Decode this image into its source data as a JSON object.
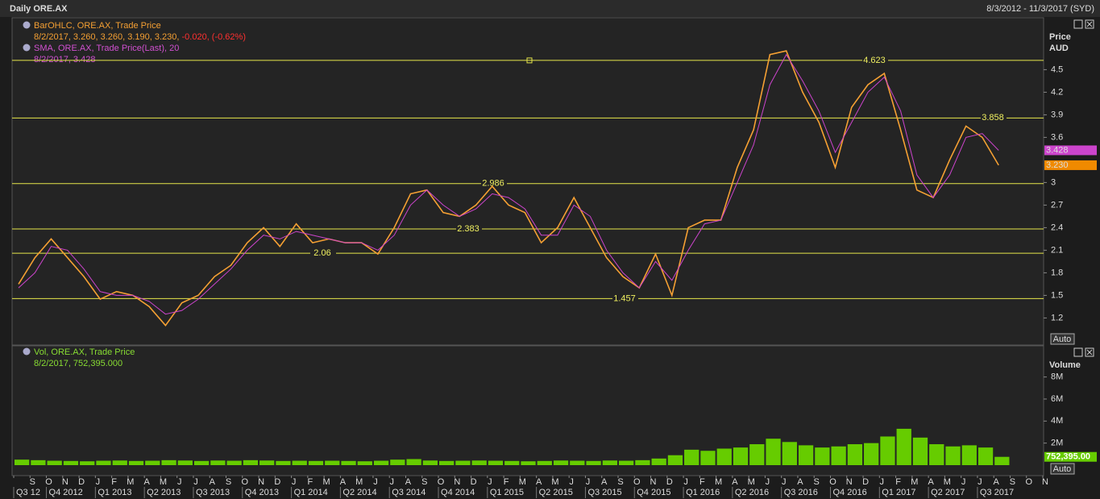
{
  "header": {
    "title": "Daily ORE.AX",
    "range": "8/3/2012 - 11/3/2017 (SYD)"
  },
  "chart_data": [
    {
      "type": "line",
      "axis_title": "Price",
      "axis_unit": "AUD",
      "scale_button": "Auto",
      "ylim": [
        0.84,
        5.19
      ],
      "yticks": [
        1.2,
        1.5,
        1.8,
        2.1,
        2.4,
        2.7,
        3,
        3.6,
        3.9,
        4.2,
        4.5
      ],
      "levels": [
        4.623,
        3.858,
        2.986,
        2.383,
        2.06,
        1.457
      ],
      "level_color": "#e6e64a",
      "series": [
        {
          "name": "BarOHLC, ORE.AX, Trade Price",
          "color": "#f5a033",
          "legend_detail": "8/2/2017, 3.260, 3.260, 3.190, 3.230,",
          "legend_change": "-0.020, (-0.62%)",
          "last_value": {
            "value": 3.23,
            "label": "3.230"
          },
          "values": [
            1.65,
            2.0,
            2.25,
            2.0,
            1.75,
            1.45,
            1.55,
            1.5,
            1.35,
            1.1,
            1.4,
            1.5,
            1.75,
            1.9,
            2.2,
            2.4,
            2.15,
            2.45,
            2.2,
            2.25,
            2.2,
            2.2,
            2.05,
            2.4,
            2.85,
            2.9,
            2.6,
            2.55,
            2.7,
            2.95,
            2.7,
            2.6,
            2.2,
            2.4,
            2.8,
            2.4,
            2.0,
            1.75,
            1.6,
            2.05,
            1.5,
            2.4,
            2.5,
            2.5,
            3.2,
            3.7,
            4.7,
            4.75,
            4.2,
            3.8,
            3.2,
            4.0,
            4.3,
            4.45,
            3.7,
            2.9,
            2.8,
            3.3,
            3.75,
            3.6,
            3.23,
            null,
            null,
            null
          ]
        },
        {
          "name": "SMA, ORE.AX, Trade Price(Last),  20",
          "color": "#cc44cc",
          "legend_detail": "8/2/2017, 3.428",
          "last_value": 3.428,
          "values": [
            1.6,
            1.8,
            2.15,
            2.1,
            1.85,
            1.55,
            1.5,
            1.5,
            1.42,
            1.25,
            1.3,
            1.45,
            1.65,
            1.85,
            2.1,
            2.3,
            2.25,
            2.35,
            2.3,
            2.25,
            2.2,
            2.2,
            2.1,
            2.3,
            2.7,
            2.9,
            2.7,
            2.55,
            2.65,
            2.85,
            2.8,
            2.65,
            2.3,
            2.3,
            2.7,
            2.55,
            2.1,
            1.8,
            1.6,
            1.95,
            1.7,
            2.1,
            2.45,
            2.5,
            3.0,
            3.5,
            4.3,
            4.7,
            4.35,
            3.95,
            3.4,
            3.8,
            4.2,
            4.4,
            3.95,
            3.1,
            2.8,
            3.1,
            3.6,
            3.65,
            3.428,
            null,
            null,
            null
          ]
        }
      ]
    },
    {
      "type": "bar",
      "axis_title": "Volume",
      "scale_button": "Auto",
      "ylim": [
        0,
        10900000
      ],
      "yticks": [
        {
          "value": 2000000,
          "label": "2M"
        },
        {
          "value": 4000000,
          "label": "4M"
        },
        {
          "value": 6000000,
          "label": "6M"
        },
        {
          "value": 8000000,
          "label": "8M"
        }
      ],
      "categories": [
        null,
        "S",
        "O",
        "N",
        "D",
        "J",
        "F",
        "M",
        "A",
        "M",
        "J",
        "J",
        "A",
        "S",
        "O",
        "N",
        "D",
        "J",
        "F",
        "M",
        "A",
        "M",
        "J",
        "J",
        "A",
        "S",
        "O",
        "N",
        "D",
        "J",
        "F",
        "M",
        "A",
        "M",
        "J",
        "J",
        "A",
        "S",
        "O",
        "N",
        "D",
        "J",
        "F",
        "M",
        "A",
        "M",
        "J",
        "J",
        "A",
        "S",
        "O",
        "N",
        "D",
        "J",
        "F",
        "M",
        "A",
        "M",
        "J",
        "J",
        "A",
        "S",
        "O",
        "N"
      ],
      "quarters": [
        "Q3 12",
        "Q4 2012",
        "Q1 2013",
        "Q2 2013",
        "Q3 2013",
        "Q4 2013",
        "Q1 2014",
        "Q2 2014",
        "Q3 2014",
        "Q4 2014",
        "Q1 2015",
        "Q2 2015",
        "Q3 2015",
        "Q4 2015",
        "Q1 2016",
        "Q2 2016",
        "Q3 2016",
        "Q4 2016",
        "Q1 2017",
        "Q2 2017",
        "Q3 2017"
      ],
      "series": [
        {
          "name": "Vol, ORE.AX, Trade Price",
          "color": "#66cc00",
          "legend_detail": "8/2/2017, 752,395.000",
          "last_value": {
            "value": 752395,
            "label": "752,395.00"
          },
          "values": [
            500000,
            450000,
            400000,
            380000,
            350000,
            400000,
            420000,
            380000,
            400000,
            450000,
            420000,
            380000,
            420000,
            400000,
            450000,
            420000,
            380000,
            400000,
            380000,
            400000,
            380000,
            350000,
            400000,
            500000,
            550000,
            420000,
            380000,
            400000,
            420000,
            400000,
            380000,
            350000,
            380000,
            420000,
            400000,
            380000,
            420000,
            400000,
            450000,
            600000,
            900000,
            1400000,
            1300000,
            1500000,
            1600000,
            1900000,
            2400000,
            2100000,
            1800000,
            1600000,
            1700000,
            1900000,
            2000000,
            2600000,
            3300000,
            2500000,
            1900000,
            1700000,
            1800000,
            1600000,
            752395,
            null,
            null,
            null
          ]
        }
      ]
    }
  ]
}
